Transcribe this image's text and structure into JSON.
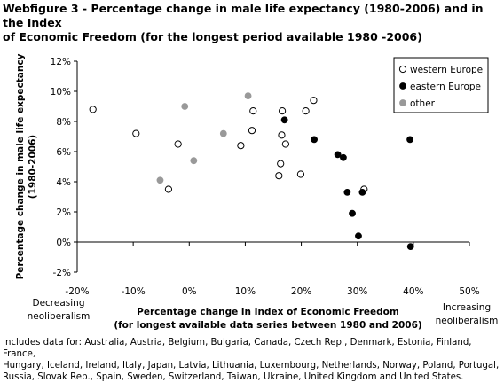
{
  "title_lines": [
    "Webfigure 3 - Percentage change in male life expectancy (1980-2006) and in the Index",
    "of Economic  Freedom  (for the longest period available 1980 -2006)"
  ],
  "footnote_lines": [
    "Includes data for: Australia, Austria, Belgium, Bulgaria, Canada, Czech Rep., Denmark, Estonia, Finland, France,",
    "Hungary, Iceland, Ireland, Italy, Japan, Latvia, Lithuania, Luxembourg, Netherlands, Norway, Poland, Portugal,",
    "Russia, Slovak Rep., Spain, Sweden, Switzerland, Taiwan, Ukraine, United Kingdom and United States."
  ],
  "chart_data": {
    "type": "scatter",
    "xlabel_lines": [
      "Percentage change in Index of Economic Freedom",
      "(for longest available data series between 1980 and 2006)"
    ],
    "ylabel_lines": [
      "Percentage change in male life expectancy",
      "(1980-2006)"
    ],
    "xlim": [
      -0.2,
      0.5
    ],
    "ylim": [
      -0.02,
      0.12
    ],
    "xticks": [
      -0.2,
      -0.1,
      0,
      0.1,
      0.2,
      0.3,
      0.4,
      0.5
    ],
    "xtick_labels": [
      "-20%",
      "-10%",
      "0%",
      "10%",
      "20%",
      "30%",
      "40%",
      "50%"
    ],
    "yticks": [
      -0.02,
      0,
      0.02,
      0.04,
      0.06,
      0.08,
      0.1,
      0.12
    ],
    "ytick_labels": [
      "-2%",
      "0%",
      "2%",
      "4%",
      "6%",
      "8%",
      "10%",
      "12%"
    ],
    "grid": false,
    "legend_position": "top-right",
    "left_annotation_lines": [
      "Decreasing",
      "neoliberalism"
    ],
    "right_annotation_lines": [
      "Increasing",
      "neoliberalism"
    ],
    "series": [
      {
        "name": "western Europe",
        "marker": "open-circle",
        "color": "#000000",
        "points": [
          [
            -0.172,
            0.088
          ],
          [
            -0.095,
            0.072
          ],
          [
            -0.02,
            0.065
          ],
          [
            -0.037,
            0.035
          ],
          [
            0.092,
            0.064
          ],
          [
            0.114,
            0.087
          ],
          [
            0.112,
            0.074
          ],
          [
            0.166,
            0.087
          ],
          [
            0.165,
            0.071
          ],
          [
            0.172,
            0.065
          ],
          [
            0.163,
            0.052
          ],
          [
            0.16,
            0.044
          ],
          [
            0.199,
            0.045
          ],
          [
            0.208,
            0.087
          ],
          [
            0.222,
            0.094
          ],
          [
            0.312,
            0.035
          ]
        ]
      },
      {
        "name": "eastern Europe",
        "marker": "filled-circle",
        "color": "#000000",
        "points": [
          [
            0.17,
            0.081
          ],
          [
            0.223,
            0.068
          ],
          [
            0.265,
            0.058
          ],
          [
            0.275,
            0.056
          ],
          [
            0.282,
            0.033
          ],
          [
            0.309,
            0.033
          ],
          [
            0.291,
            0.019
          ],
          [
            0.302,
            0.004
          ],
          [
            0.394,
            0.068
          ],
          [
            0.395,
            -0.003
          ]
        ]
      },
      {
        "name": "other",
        "marker": "filled-circle",
        "color": "#999999",
        "points": [
          [
            -0.008,
            0.09
          ],
          [
            0.105,
            0.097
          ],
          [
            -0.052,
            0.041
          ],
          [
            0.008,
            0.054
          ],
          [
            0.061,
            0.072
          ]
        ]
      }
    ]
  }
}
